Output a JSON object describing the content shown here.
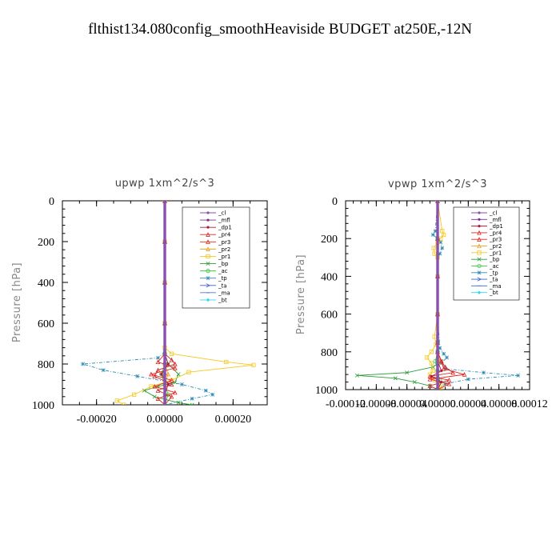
{
  "figure": {
    "title": "flthist134.080config_smoothHeaviside  BUDGET at250E,-12N"
  },
  "chart_data": [
    {
      "type": "line",
      "title": "upwp   1xm^2/s^3",
      "xlabel": "",
      "ylabel": "Pressure [hPa]",
      "xlim": [
        -0.0003,
        0.0003
      ],
      "ylim": [
        1000,
        0
      ],
      "x_ticks": [
        -0.0002,
        0.0,
        0.0002
      ],
      "x_tick_labels": [
        "-0.00020",
        "0.00000",
        "0.00020"
      ],
      "y_ticks": [
        0,
        200,
        400,
        600,
        800,
        1000
      ],
      "y_tick_labels": [
        "0",
        "200",
        "400",
        "600",
        "800",
        "1000"
      ],
      "legend_position": "top-right",
      "series": [
        {
          "name": "_cl",
          "color": "#8a4fb0",
          "marker": "dot",
          "pressure": [
            0,
            200,
            400,
            600,
            750,
            800,
            850,
            900,
            950,
            1000
          ],
          "values": [
            0.0,
            0.0,
            0.0,
            0.0,
            0.0,
            0.0,
            0.0,
            0.0,
            0.0,
            0.0
          ]
        },
        {
          "name": "_mfl",
          "color": "#7b2d8e",
          "marker": "dot",
          "pressure": [
            0,
            200,
            400,
            600,
            750,
            800,
            850,
            900,
            950,
            1000
          ],
          "values": [
            0.0,
            0.0,
            0.0,
            0.0,
            0.0,
            0.0,
            0.0,
            0.0,
            0.0,
            0.0
          ]
        },
        {
          "name": "_dp1",
          "color": "#b0183f",
          "marker": "dot",
          "pressure": [
            0,
            200,
            400,
            600,
            750,
            800,
            850,
            900,
            950,
            1000
          ],
          "values": [
            0.0,
            0.0,
            0.0,
            0.0,
            0.0,
            1e-05,
            -1e-05,
            1e-05,
            0.0,
            0.0
          ]
        },
        {
          "name": "_pr4",
          "color": "#d22a2a",
          "marker": "triangle",
          "pressure": [
            0,
            200,
            400,
            600,
            750,
            780,
            800,
            830,
            860,
            900,
            930,
            960,
            1000
          ],
          "values": [
            0.0,
            0.0,
            0.0,
            0.0,
            0.0,
            2e-05,
            3e-05,
            -2e-05,
            -3e-05,
            2e-05,
            -2e-05,
            2e-05,
            0.0
          ]
        },
        {
          "name": "_pr3",
          "color": "#e8261d",
          "marker": "triangle",
          "pressure": [
            0,
            200,
            400,
            600,
            750,
            790,
            820,
            850,
            880,
            910,
            940,
            970,
            1000
          ],
          "values": [
            0.0,
            0.0,
            0.0,
            0.0,
            0.0,
            -2e-05,
            3e-05,
            -4e-05,
            2e-05,
            -3e-05,
            3e-05,
            -2e-05,
            0.0
          ]
        },
        {
          "name": "_pr2",
          "color": "#f0a020",
          "marker": "triangle",
          "pressure": [
            0,
            200,
            400,
            600,
            750,
            800,
            850,
            900,
            950,
            1000
          ],
          "values": [
            0.0,
            0.0,
            0.0,
            0.0,
            0.0,
            0.0,
            1e-05,
            0.0,
            0.0,
            0.0
          ]
        },
        {
          "name": "_pr1",
          "color": "#f4c81c",
          "marker": "square",
          "pressure": [
            0,
            200,
            400,
            600,
            720,
            750,
            790,
            805,
            840,
            880,
            910,
            950,
            980,
            1000
          ],
          "values": [
            0.0,
            0.0,
            0.0,
            0.0,
            0.0,
            2e-05,
            0.00018,
            0.00026,
            7e-05,
            2e-05,
            -4e-05,
            -9e-05,
            -0.00014,
            -0.00012
          ]
        },
        {
          "name": "_bp",
          "color": "#2e9e3a",
          "marker": "cross",
          "pressure": [
            0,
            200,
            400,
            600,
            750,
            800,
            850,
            890,
            910,
            930,
            960,
            990,
            1000
          ],
          "values": [
            0.0,
            0.0,
            0.0,
            0.0,
            0.0,
            1e-05,
            4e-05,
            3e-05,
            -2e-05,
            -6e-05,
            -3e-05,
            4e-05,
            8e-05
          ]
        },
        {
          "name": "_ac",
          "color": "#36c83c",
          "marker": "circle",
          "pressure": [
            0,
            200,
            400,
            600,
            750,
            800,
            850,
            900,
            950,
            1000
          ],
          "values": [
            0.0,
            0.0,
            0.0,
            0.0,
            0.0,
            0.0,
            -1e-05,
            0.0,
            1e-05,
            0.0
          ]
        },
        {
          "name": "_tp",
          "color": "#2a8ab4",
          "marker": "star",
          "pressure": [
            0,
            200,
            400,
            600,
            740,
            770,
            800,
            830,
            860,
            900,
            930,
            950,
            970,
            1000
          ],
          "values": [
            0.0,
            0.0,
            0.0,
            0.0,
            0.0,
            -2e-05,
            -0.00024,
            -0.00018,
            -8e-05,
            5e-05,
            0.00012,
            0.00014,
            8e-05,
            0.0
          ]
        },
        {
          "name": "_ta",
          "color": "#3a5fd0",
          "marker": "arrow",
          "pressure": [
            0,
            200,
            400,
            600,
            750,
            800,
            850,
            900,
            950,
            1000
          ],
          "values": [
            0.0,
            0.0,
            0.0,
            0.0,
            0.0,
            0.0,
            0.0,
            0.0,
            0.0,
            0.0
          ]
        },
        {
          "name": "_ma",
          "color": "#4a7fd8",
          "marker": "dash",
          "pressure": [
            0,
            200,
            400,
            600,
            750,
            800,
            850,
            900,
            950,
            1000
          ],
          "values": [
            0.0,
            0.0,
            0.0,
            0.0,
            0.0,
            0.0,
            0.0,
            0.0,
            0.0,
            0.0
          ]
        },
        {
          "name": "_bt",
          "color": "#2ad8f0",
          "marker": "diamond",
          "pressure": [
            0,
            200,
            400,
            600,
            750,
            800,
            850,
            900,
            950,
            1000
          ],
          "values": [
            0.0,
            0.0,
            0.0,
            0.0,
            0.0,
            0.0,
            0.0,
            0.0,
            0.0,
            0.0
          ]
        }
      ]
    },
    {
      "type": "line",
      "title": "vpwp   1xm^2/s^3",
      "xlabel": "",
      "ylabel": "Pressure [hPa]",
      "xlim": [
        -0.00012,
        0.00012
      ],
      "ylim": [
        1000,
        0
      ],
      "x_ticks": [
        -0.00012,
        -8e-05,
        -4e-05,
        0.0,
        4e-05,
        8e-05,
        0.00012
      ],
      "x_tick_labels": [
        "-0.00012",
        "-0.00008",
        "-0.00004",
        "0.00000",
        "0.00004",
        "0.00008",
        "0.00012"
      ],
      "y_ticks": [
        0,
        200,
        400,
        600,
        800,
        1000
      ],
      "y_tick_labels": [
        "0",
        "200",
        "400",
        "600",
        "800",
        "1000"
      ],
      "legend_position": "top-right",
      "series": [
        {
          "name": "_cl",
          "color": "#8a4fb0",
          "marker": "dot",
          "pressure": [
            0,
            200,
            400,
            600,
            750,
            800,
            850,
            900,
            950,
            1000
          ],
          "values": [
            0.0,
            0.0,
            0.0,
            0.0,
            0.0,
            0.0,
            0.0,
            0.0,
            0.0,
            0.0
          ]
        },
        {
          "name": "_mfl",
          "color": "#7b2d8e",
          "marker": "dot",
          "pressure": [
            0,
            200,
            400,
            600,
            750,
            800,
            850,
            900,
            950,
            1000
          ],
          "values": [
            0.0,
            0.0,
            0.0,
            0.0,
            0.0,
            0.0,
            0.0,
            0.0,
            0.0,
            0.0
          ]
        },
        {
          "name": "_dp1",
          "color": "#b0183f",
          "marker": "dot",
          "pressure": [
            0,
            200,
            400,
            600,
            750,
            800,
            850,
            900,
            930,
            960,
            1000
          ],
          "values": [
            0.0,
            0.0,
            0.0,
            0.0,
            0.0,
            0.0,
            0.0,
            5e-06,
            -8e-06,
            5e-06,
            0.0
          ]
        },
        {
          "name": "_pr4",
          "color": "#d22a2a",
          "marker": "triangle",
          "pressure": [
            0,
            200,
            400,
            600,
            750,
            800,
            850,
            880,
            910,
            930,
            950,
            980,
            1000
          ],
          "values": [
            0.0,
            0.0,
            0.0,
            0.0,
            0.0,
            0.0,
            5e-06,
            1e-05,
            2e-05,
            -1e-05,
            1.5e-05,
            -1e-05,
            0.0
          ]
        },
        {
          "name": "_pr3",
          "color": "#e8261d",
          "marker": "triangle",
          "pressure": [
            0,
            200,
            400,
            600,
            750,
            800,
            850,
            890,
            920,
            945,
            970,
            1000
          ],
          "values": [
            0.0,
            0.0,
            0.0,
            0.0,
            0.0,
            0.0,
            5e-06,
            8e-06,
            3.5e-05,
            -1e-05,
            1.5e-05,
            0.0
          ]
        },
        {
          "name": "_pr2",
          "color": "#f0a020",
          "marker": "triangle",
          "pressure": [
            0,
            200,
            400,
            600,
            750,
            800,
            850,
            900,
            950,
            1000
          ],
          "values": [
            0.0,
            0.0,
            0.0,
            0.0,
            0.0,
            0.0,
            3e-06,
            0.0,
            0.0,
            0.0
          ]
        },
        {
          "name": "_pr1",
          "color": "#f4c81c",
          "marker": "square",
          "pressure": [
            0,
            160,
            180,
            200,
            220,
            250,
            280,
            300,
            400,
            600,
            720,
            760,
            800,
            830,
            860,
            900,
            920,
            950,
            980,
            1000
          ],
          "values": [
            0.0,
            6e-06,
            8e-06,
            4e-06,
            0.0,
            -5e-06,
            -4e-06,
            0.0,
            0.0,
            0.0,
            -4e-06,
            -2e-06,
            -8e-06,
            -1.4e-05,
            -8e-06,
            -6e-06,
            -1e-05,
            -4e-06,
            5e-06,
            4e-06
          ]
        },
        {
          "name": "_bp",
          "color": "#2e9e3a",
          "marker": "cross",
          "pressure": [
            0,
            200,
            400,
            600,
            750,
            800,
            850,
            880,
            910,
            925,
            940,
            960,
            980,
            1000
          ],
          "values": [
            0.0,
            0.0,
            0.0,
            0.0,
            0.0,
            0.0,
            5e-06,
            -6e-06,
            -4e-05,
            -0.000105,
            -5.5e-05,
            -3e-05,
            -1e-05,
            0.0
          ]
        },
        {
          "name": "_ac",
          "color": "#36c83c",
          "marker": "circle",
          "pressure": [
            0,
            200,
            400,
            600,
            750,
            800,
            850,
            900,
            950,
            1000
          ],
          "values": [
            0.0,
            0.0,
            0.0,
            0.0,
            0.0,
            0.0,
            -3e-06,
            0.0,
            3e-06,
            0.0
          ]
        },
        {
          "name": "_tp",
          "color": "#2a8ab4",
          "marker": "star",
          "pressure": [
            0,
            160,
            180,
            200,
            220,
            250,
            280,
            300,
            400,
            600,
            780,
            810,
            830,
            860,
            890,
            910,
            925,
            945,
            970,
            1000
          ],
          "values": [
            0.0,
            -3e-06,
            -6e-06,
            0.0,
            4e-06,
            6e-06,
            3e-06,
            0.0,
            0.0,
            0.0,
            3e-06,
            8e-06,
            1.2e-05,
            5e-06,
            1e-05,
            6e-05,
            0.000105,
            4e-05,
            1e-05,
            0.0
          ]
        },
        {
          "name": "_ta",
          "color": "#3a5fd0",
          "marker": "arrow",
          "pressure": [
            0,
            200,
            400,
            600,
            750,
            800,
            850,
            900,
            950,
            1000
          ],
          "values": [
            0.0,
            0.0,
            0.0,
            0.0,
            0.0,
            0.0,
            0.0,
            0.0,
            0.0,
            0.0
          ]
        },
        {
          "name": "_ma",
          "color": "#4a7fd8",
          "marker": "dash",
          "pressure": [
            0,
            200,
            400,
            600,
            750,
            800,
            850,
            900,
            950,
            1000
          ],
          "values": [
            0.0,
            0.0,
            0.0,
            0.0,
            0.0,
            0.0,
            0.0,
            0.0,
            0.0,
            0.0
          ]
        },
        {
          "name": "_bt",
          "color": "#2ad8f0",
          "marker": "diamond",
          "pressure": [
            0,
            200,
            400,
            600,
            750,
            800,
            850,
            900,
            950,
            1000
          ],
          "values": [
            0.0,
            0.0,
            0.0,
            0.0,
            0.0,
            0.0,
            0.0,
            0.0,
            0.0,
            0.0
          ]
        }
      ]
    }
  ]
}
